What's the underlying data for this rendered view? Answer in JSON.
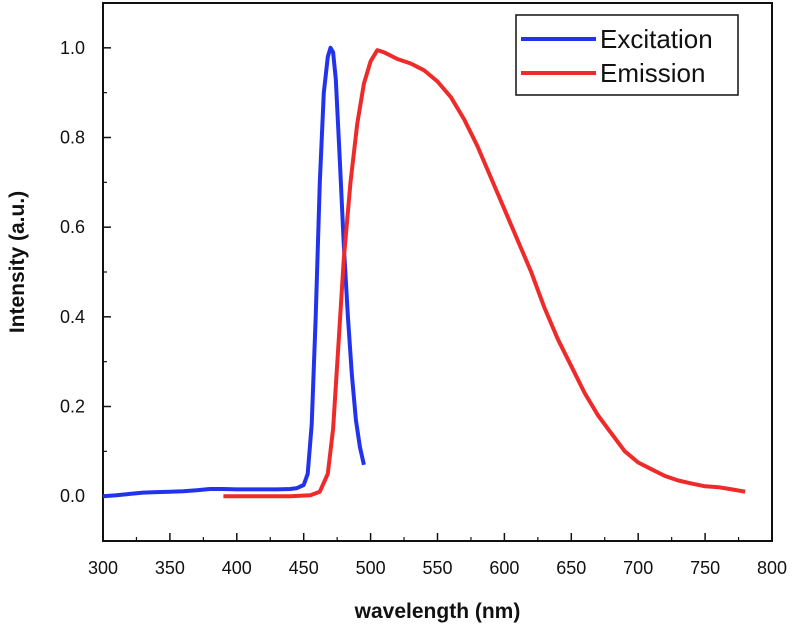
{
  "chart_data": {
    "type": "line",
    "title": "",
    "xlabel": "wavelength (nm)",
    "ylabel": "Intensity (a.u.)",
    "xlim": [
      300,
      800
    ],
    "ylim": [
      -0.1,
      1.1
    ],
    "xticks": [
      300,
      350,
      400,
      450,
      500,
      550,
      600,
      650,
      700,
      750,
      800
    ],
    "xtick_labels": [
      "300",
      "350",
      "400",
      "450",
      "500",
      "550",
      "600",
      "650",
      "700",
      "750",
      "800"
    ],
    "yticks": [
      0.0,
      0.2,
      0.4,
      0.6,
      0.8,
      1.0
    ],
    "ytick_labels": [
      "0.0",
      "0.2",
      "0.4",
      "0.6",
      "0.8",
      "1.0"
    ],
    "grid": false,
    "legend_position": "top-right",
    "series": [
      {
        "name": "Excitation",
        "color": "#2233ee",
        "x": [
          300,
          310,
          320,
          330,
          340,
          350,
          360,
          370,
          380,
          390,
          400,
          410,
          420,
          430,
          440,
          445,
          450,
          453,
          456,
          459,
          462,
          465,
          468,
          470,
          472,
          474,
          477,
          480,
          483,
          486,
          489,
          492,
          495
        ],
        "y": [
          0.0,
          0.002,
          0.005,
          0.008,
          0.009,
          0.01,
          0.011,
          0.013,
          0.016,
          0.016,
          0.015,
          0.015,
          0.015,
          0.015,
          0.016,
          0.018,
          0.025,
          0.05,
          0.16,
          0.4,
          0.7,
          0.9,
          0.98,
          1.0,
          0.99,
          0.93,
          0.75,
          0.56,
          0.4,
          0.27,
          0.17,
          0.11,
          0.07
        ]
      },
      {
        "name": "Emission",
        "color": "#ee2a2a",
        "x": [
          390,
          400,
          420,
          440,
          455,
          462,
          468,
          472,
          476,
          480,
          485,
          490,
          495,
          500,
          505,
          510,
          520,
          530,
          540,
          550,
          560,
          570,
          580,
          590,
          600,
          610,
          620,
          630,
          640,
          650,
          660,
          670,
          680,
          690,
          700,
          710,
          720,
          730,
          740,
          750,
          760,
          770,
          780
        ],
        "y": [
          0.0,
          0.0,
          0.0,
          0.0,
          0.002,
          0.01,
          0.05,
          0.15,
          0.34,
          0.53,
          0.7,
          0.83,
          0.92,
          0.97,
          0.995,
          0.99,
          0.975,
          0.965,
          0.95,
          0.925,
          0.89,
          0.84,
          0.78,
          0.71,
          0.64,
          0.57,
          0.5,
          0.42,
          0.35,
          0.29,
          0.23,
          0.18,
          0.14,
          0.1,
          0.075,
          0.06,
          0.045,
          0.035,
          0.028,
          0.022,
          0.02,
          0.015,
          0.01
        ]
      }
    ]
  }
}
